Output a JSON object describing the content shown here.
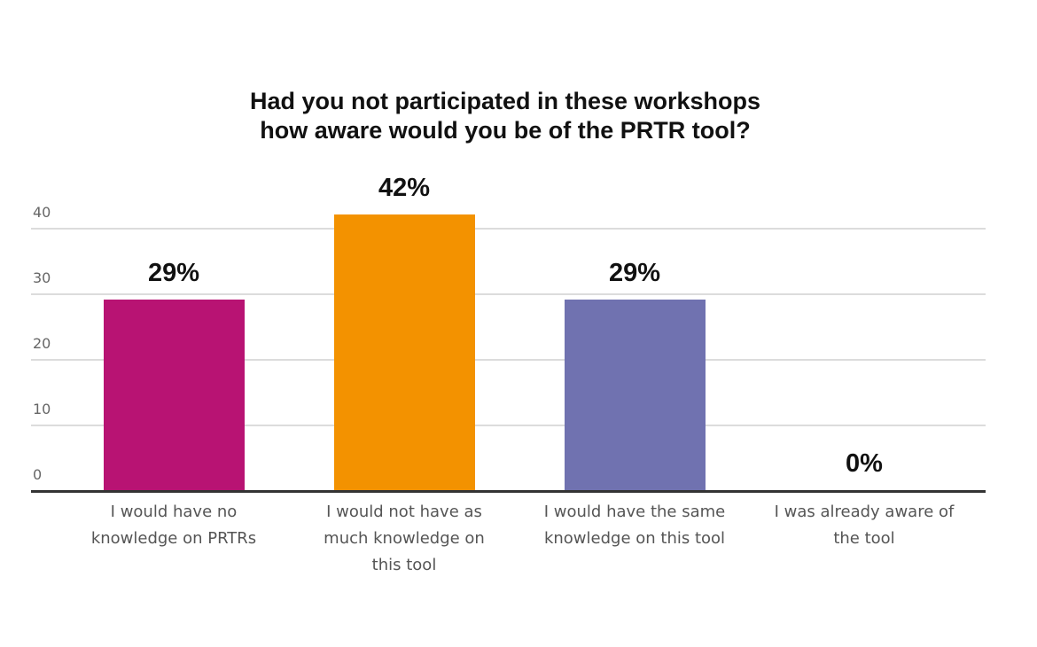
{
  "chart_data": {
    "type": "bar",
    "title": "Had you not participated in these workshops how aware would you be of the PRTR tool?",
    "title_lines": [
      "Had you not participated in these workshops",
      "how aware would you be of the PRTR tool?"
    ],
    "categories": [
      "I would have no knowledge on PRTRs",
      "I would not have as much knowledge on this tool",
      "I would have the same knowledge on this tool",
      "I was already aware of the tool"
    ],
    "category_lines": [
      [
        "I would have no",
        "knowledge on PRTRs"
      ],
      [
        "I would not have as",
        "much knowledge on",
        "this tool"
      ],
      [
        "I would have the same",
        "knowledge on this tool"
      ],
      [
        "I was already aware of",
        "the tool"
      ]
    ],
    "values": [
      29,
      42,
      29,
      0
    ],
    "data_labels": [
      "29%",
      "42%",
      "29%",
      "0%"
    ],
    "colors": [
      "#b81373",
      "#f39200",
      "#7072b0",
      "#cccccc"
    ],
    "xlabel": "",
    "ylabel": "",
    "yticks": [
      0,
      10,
      20,
      30,
      40
    ],
    "ylim": [
      0,
      40
    ],
    "grid": true,
    "legend": "none"
  }
}
